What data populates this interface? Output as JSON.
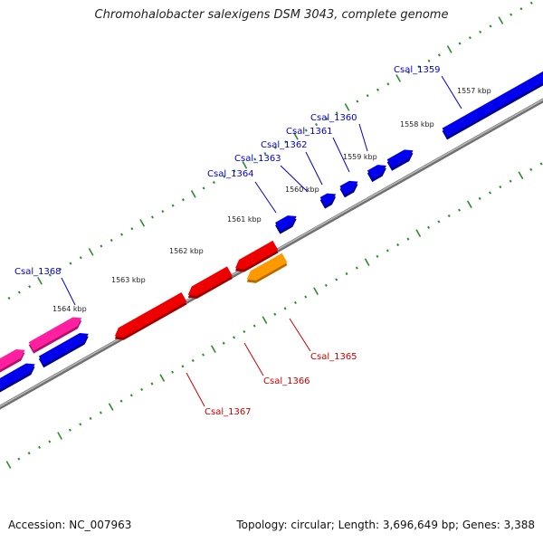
{
  "title": "Chromohalobacter salexigens DSM 3043, complete genome",
  "footer": {
    "accession": "Accession: NC_007963",
    "summary": "Topology: circular; Length: 3,696,649 bp; Genes: 3,388"
  },
  "colors": {
    "backbone": "#8c8c8c",
    "tick": "#2e8b2e",
    "forward_label": "#0000cc",
    "reverse_label": "#cc0000",
    "gene_blue": "#0000ee",
    "gene_red": "#ee0000",
    "gene_magenta": "#ff1f9f",
    "gene_orange": "#ff9900"
  },
  "kbp_labels": [
    {
      "text": "1557 kbp",
      "pos_kbp": 1557
    },
    {
      "text": "1558 kbp",
      "pos_kbp": 1558
    },
    {
      "text": "1559 kbp",
      "pos_kbp": 1559
    },
    {
      "text": "1560 kbp",
      "pos_kbp": 1560
    },
    {
      "text": "1561 kbp",
      "pos_kbp": 1561
    },
    {
      "text": "1562 kbp",
      "pos_kbp": 1562
    },
    {
      "text": "1563 kbp",
      "pos_kbp": 1563
    },
    {
      "text": "1564 kbp",
      "pos_kbp": 1564
    }
  ],
  "genes": [
    {
      "label": "Csal_1359",
      "strand": "forward",
      "color": "blue"
    },
    {
      "label": "Csal_1360",
      "strand": "forward",
      "color": "blue"
    },
    {
      "label": "Csal_1361",
      "strand": "forward",
      "color": "blue"
    },
    {
      "label": "Csal_1362",
      "strand": "forward",
      "color": "blue"
    },
    {
      "label": "Csal_1363",
      "strand": "forward",
      "color": "blue"
    },
    {
      "label": "Csal_1364",
      "strand": "forward",
      "color": "blue"
    },
    {
      "label": "Csal_1368",
      "strand": "forward",
      "color": "magenta"
    },
    {
      "label": "Csal_1365",
      "strand": "reverse",
      "color": "orange"
    },
    {
      "label": "Csal_1366",
      "strand": "reverse",
      "color": "red"
    },
    {
      "label": "Csal_1367",
      "strand": "reverse",
      "color": "red"
    }
  ]
}
